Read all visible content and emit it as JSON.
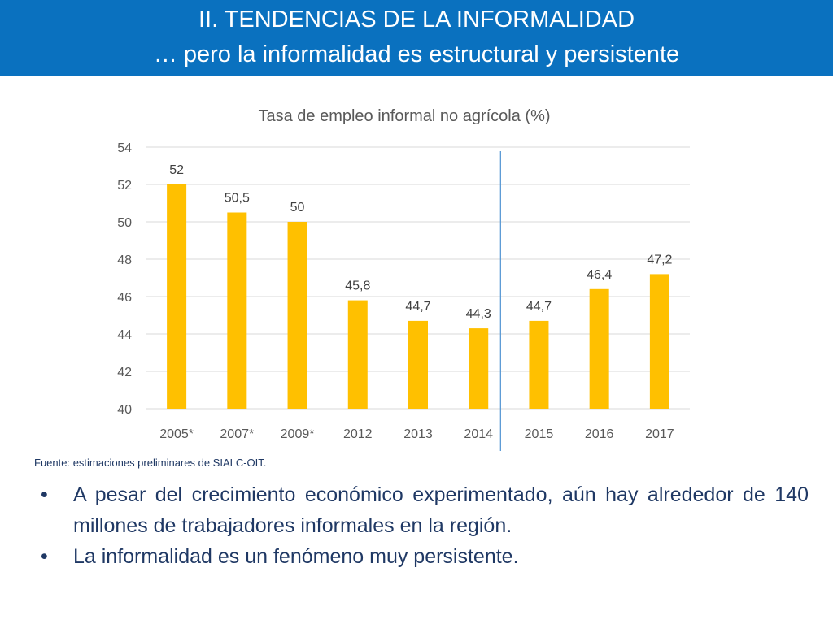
{
  "header": {
    "line1": "II. TENDENCIAS DE LA INFORMALIDAD",
    "line2": "… pero la informalidad es estructural y persistente",
    "background": "#0a71bf"
  },
  "chart_data": {
    "type": "bar",
    "title": "Tasa de empleo informal no agrícola (%)",
    "categories": [
      "2005*",
      "2007*",
      "2009*",
      "2012",
      "2013",
      "2014",
      "2015",
      "2016",
      "2017"
    ],
    "values": [
      52,
      50.5,
      50,
      45.8,
      44.7,
      44.3,
      44.7,
      46.4,
      47.2
    ],
    "data_labels": [
      "52",
      "50,5",
      "50",
      "45,8",
      "44,7",
      "44,3",
      "44,7",
      "46,4",
      "47,2"
    ],
    "ylim": [
      40,
      54
    ],
    "yticks": [
      40,
      42,
      44,
      46,
      48,
      50,
      52,
      54
    ],
    "grid": true,
    "separator_between": [
      "2014",
      "2015"
    ],
    "bar_color": "#ffc000",
    "separator_color": "#5b9bd5"
  },
  "source": "Fuente: estimaciones preliminares de SIALC-OIT.",
  "bullets": [
    "A pesar del crecimiento económico experimentado, aún hay alrededor de 140 millones de trabajadores informales en la región.",
    "La informalidad es un fenómeno muy persistente."
  ],
  "bullet_symbol": "•"
}
